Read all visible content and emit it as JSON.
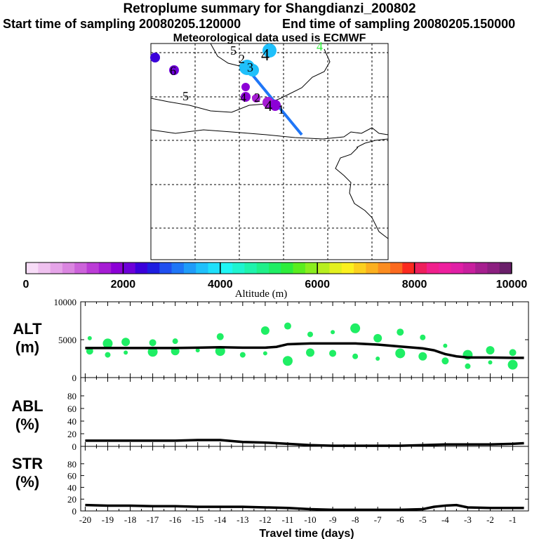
{
  "header": {
    "title": "Retroplume summary for Shangdianzi_200802",
    "start": "Start time of sampling 20080205.120000",
    "end": "End time of sampling 20080205.150000",
    "met": "Meteorological data used is ECMWF"
  },
  "colorbar": {
    "ticks": [
      "0",
      "2000",
      "4000",
      "6000",
      "8000",
      "10000"
    ],
    "label": "Altitude (m)",
    "colors": [
      "#f7dcf7",
      "#efc1ef",
      "#e5a4e8",
      "#da86e0",
      "#cc63da",
      "#bb3cd6",
      "#a61cd4",
      "#8c00d6",
      "#6e00d9",
      "#3b00db",
      "#1e1ee0",
      "#1f4ff0",
      "#1f76f7",
      "#1f9cf9",
      "#1fc0fb",
      "#1fe0fb",
      "#1ff6f4",
      "#1ff4d0",
      "#1ff3ac",
      "#1ff089",
      "#1fee64",
      "#2ded3b",
      "#5aed1f",
      "#8aed1f",
      "#b7ee1f",
      "#e3f01f",
      "#fbf01f",
      "#fbd01f",
      "#fbb01f",
      "#fb8c1f",
      "#fb6a1f",
      "#fb2a1f",
      "#ee1f5c",
      "#f01f8c",
      "#ee1f9e",
      "#e01fa6",
      "#c81f9e",
      "#a61f8f",
      "#8c1f80",
      "#6a1f6a"
    ]
  },
  "map_labels": [
    {
      "text": "5"
    },
    {
      "text": "6"
    },
    {
      "text": "5"
    },
    {
      "text": "3"
    },
    {
      "text": "2"
    },
    {
      "text": "4"
    },
    {
      "text": "4"
    },
    {
      "text": "2"
    },
    {
      "text": "4"
    },
    {
      "text": "1"
    },
    {
      "text": "4"
    }
  ],
  "panels": {
    "alt_label": "ALT\n(m)",
    "abl_label": "ABL\n(%)",
    "str_label": "STR\n(%)",
    "alt_ticks": [
      "10000",
      "5000",
      "0"
    ],
    "pct_ticks": [
      "80",
      "60",
      "40",
      "20",
      "0"
    ],
    "xlabel": "Travel time (days)",
    "xticks": [
      "-20",
      "-19",
      "-18",
      "-17",
      "-16",
      "-15",
      "-14",
      "-13",
      "-12",
      "-11",
      "-10",
      "-9",
      "-8",
      "-7",
      "-6",
      "-5",
      "-4",
      "-3",
      "-2",
      "-1"
    ]
  },
  "chart_data": [
    {
      "type": "line",
      "title": "ALT",
      "ylabel": "ALT (m)",
      "xlabel": "Travel time (days)",
      "ylim": [
        0,
        10000
      ],
      "x": [
        -20,
        -19,
        -18,
        -17,
        -16,
        -15,
        -14,
        -13,
        -12,
        -11.5,
        -11,
        -10,
        -9,
        -8,
        -7,
        -6,
        -5,
        -4.5,
        -4,
        -3.5,
        -3,
        -2,
        -1,
        -0.5
      ],
      "values": [
        3900,
        3900,
        3900,
        3900,
        3900,
        3950,
        4000,
        3950,
        3950,
        4050,
        4400,
        4500,
        4500,
        4500,
        4350,
        4100,
        3850,
        3600,
        3100,
        2800,
        2650,
        2650,
        2600,
        2600
      ],
      "scatter_x": [
        -19.8,
        -19.8,
        -19,
        -19,
        -18.2,
        -18.2,
        -17,
        -17,
        -16,
        -16,
        -15,
        -14,
        -14,
        -13,
        -12,
        -12,
        -11,
        -11,
        -10,
        -10,
        -9,
        -9,
        -8,
        -8,
        -7,
        -7,
        -6,
        -6,
        -5,
        -5,
        -4,
        -4,
        -3,
        -3,
        -2,
        -2,
        -1,
        -1
      ],
      "scatter_y": [
        5200,
        3500,
        4500,
        3000,
        4700,
        3300,
        4600,
        3400,
        4800,
        3500,
        3600,
        5400,
        3500,
        3000,
        6200,
        3200,
        6800,
        2200,
        5700,
        3300,
        6000,
        3200,
        6500,
        2800,
        5200,
        2500,
        6000,
        3200,
        5300,
        2800,
        4200,
        2200,
        3000,
        1500,
        3600,
        2000,
        3300,
        1700
      ]
    },
    {
      "type": "line",
      "title": "ABL",
      "ylabel": "ABL (%)",
      "ylim": [
        0,
        100
      ],
      "x": [
        -20,
        -19,
        -18,
        -17,
        -16,
        -15,
        -14,
        -13,
        -12,
        -11,
        -10,
        -9,
        -8,
        -7,
        -6,
        -5,
        -4,
        -3,
        -2,
        -1,
        -0.5
      ],
      "values": [
        9,
        9,
        9,
        9,
        9,
        10,
        10,
        7,
        6,
        4,
        2,
        1,
        1,
        1,
        1,
        2,
        3,
        3,
        3,
        4,
        5
      ]
    },
    {
      "type": "line",
      "title": "STR",
      "ylabel": "STR (%)",
      "ylim": [
        0,
        100
      ],
      "x": [
        -20,
        -19,
        -18,
        -17,
        -16,
        -15,
        -14,
        -13,
        -12,
        -11,
        -10,
        -9,
        -8,
        -7,
        -6,
        -5,
        -4.5,
        -4,
        -3.5,
        -3,
        -2,
        -1,
        -0.5
      ],
      "values": [
        10,
        9,
        9,
        8,
        8,
        7,
        7,
        7,
        6,
        5,
        3,
        2,
        2,
        2,
        2,
        3,
        7,
        9,
        10,
        6,
        5,
        5,
        5
      ]
    }
  ]
}
